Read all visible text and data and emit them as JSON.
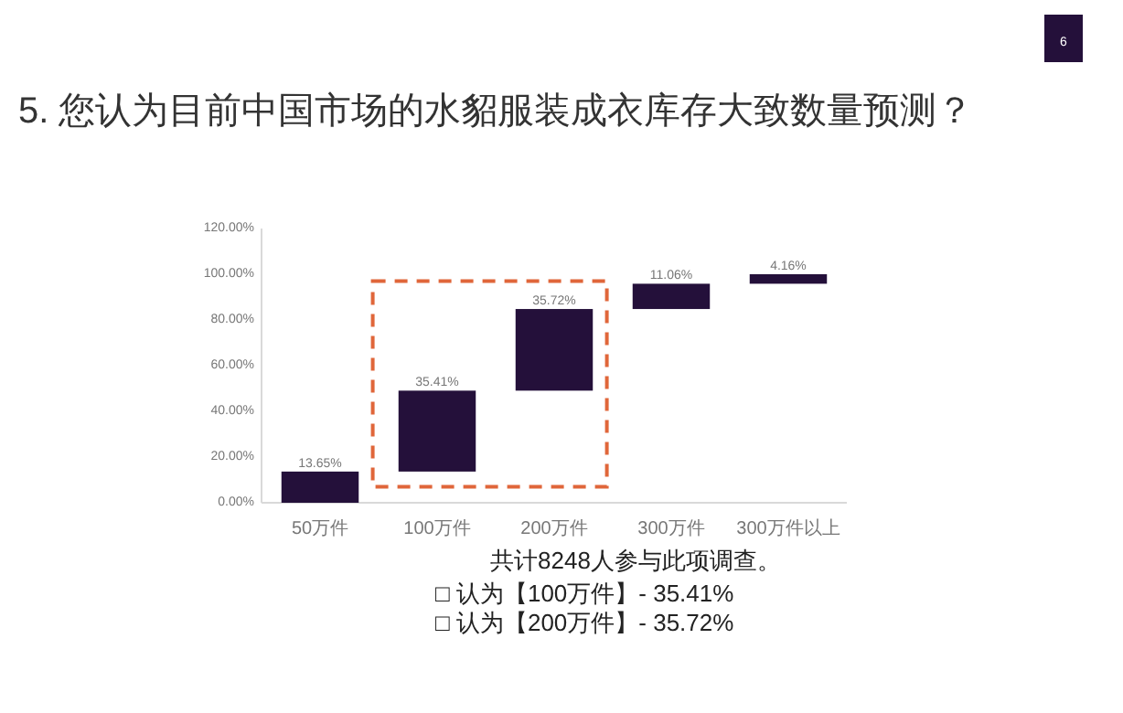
{
  "chart_data": {
    "type": "bar",
    "title": "5. 您认为目前中国市场的水貂服装成衣库存大致数量预测？",
    "categories": [
      "50万件",
      "100万件",
      "200万件",
      "300万件",
      "300万件以上"
    ],
    "values": [
      13.65,
      35.41,
      35.72,
      11.06,
      4.16
    ],
    "base": [
      0,
      13.65,
      49.06,
      84.78,
      95.84
    ],
    "value_labels": [
      "13.65%",
      "35.41%",
      "35.72%",
      "11.06%",
      "4.16%"
    ],
    "color": "#24103a",
    "ylim": [
      0,
      120
    ],
    "yticks": [
      {
        "value": 0,
        "label": "0.00%"
      },
      {
        "value": 20,
        "label": "20.00%"
      },
      {
        "value": 40,
        "label": "40.00%"
      },
      {
        "value": 60,
        "label": "60.00%"
      },
      {
        "value": 80,
        "label": "80.00%"
      },
      {
        "value": 100,
        "label": "100.00%"
      },
      {
        "value": 120,
        "label": "120.00%"
      }
    ],
    "annotations": [
      "6",
      "共计8248人参与此项调查。",
      "□ 认为【100万件】- 35.41%",
      "□ 认为【200万件】- 35.72%"
    ]
  }
}
